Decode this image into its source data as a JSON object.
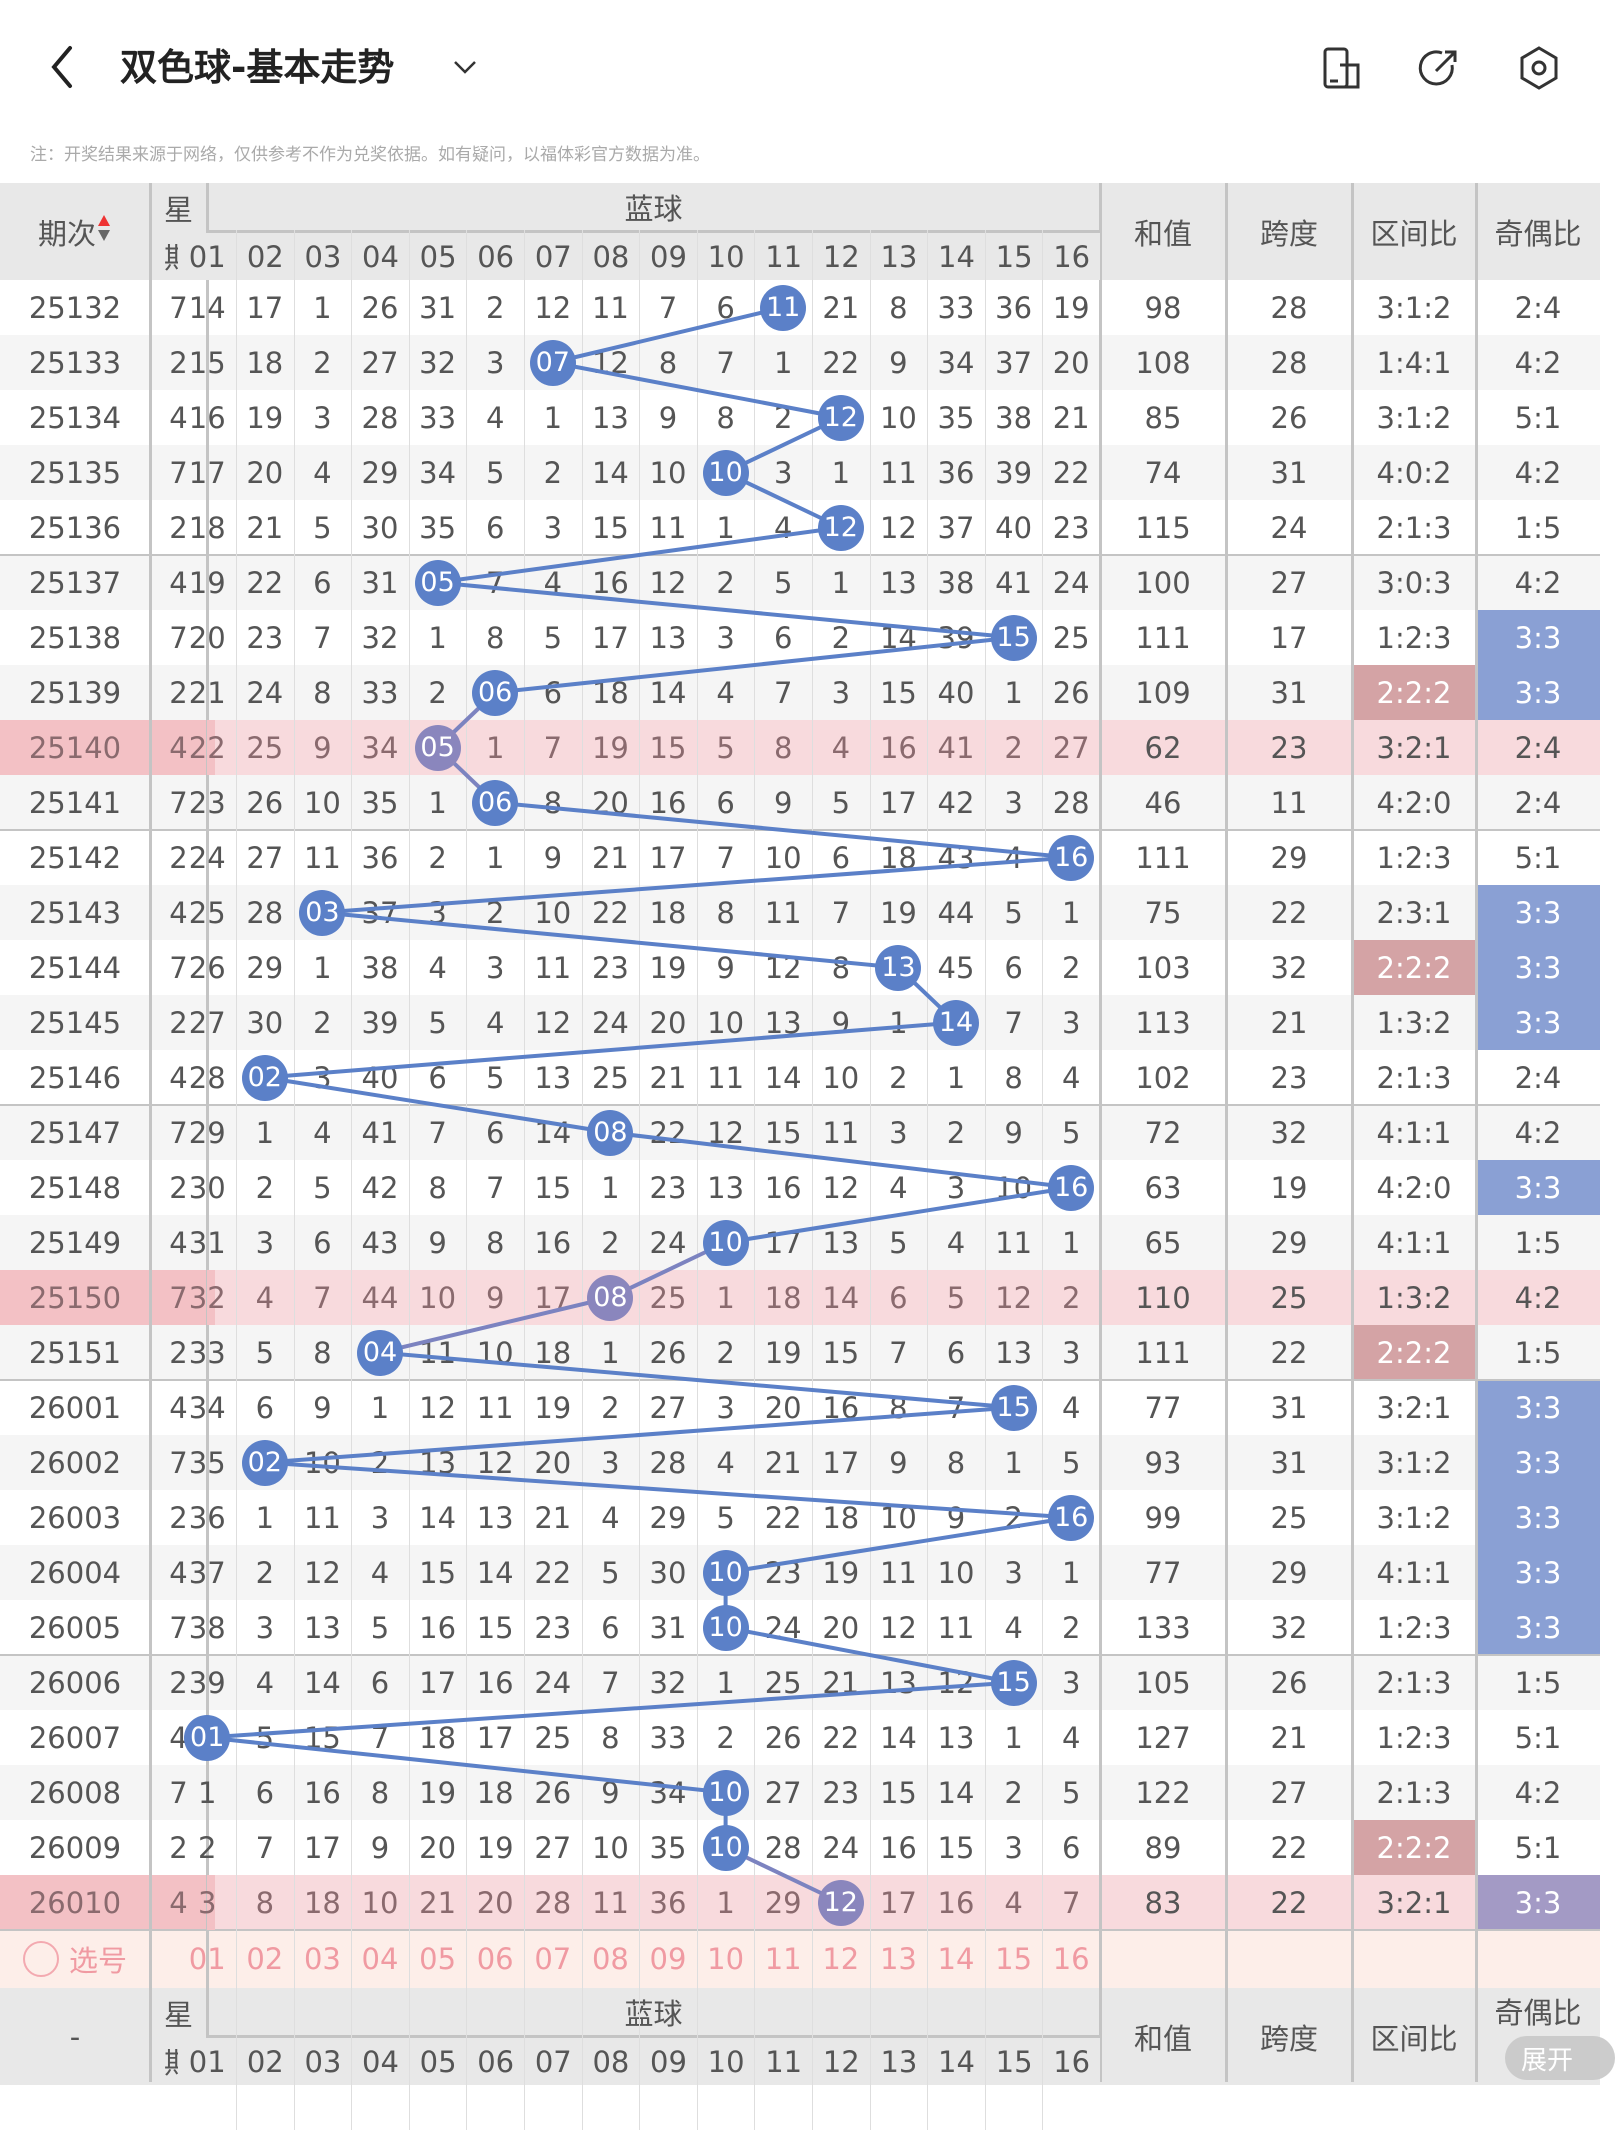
{
  "header": {
    "title": "双色球-基本走势",
    "note": "注：开奖结果来源于网络，仅供参考不作为兑奖依据。如有疑问，以福体彩官方数据为准。"
  },
  "icons": [
    "back-arrow-icon",
    "chevron-down-icon",
    "device-icon",
    "share-icon",
    "settings-icon"
  ],
  "columns": {
    "issue": "期次",
    "week": "星期",
    "week_top": "星",
    "week_bottom": "期",
    "blue": "蓝球",
    "sum": "和值",
    "span": "跨度",
    "zone": "区间比",
    "oddeven": "奇偶比",
    "blue_numbers": [
      "01",
      "02",
      "03",
      "04",
      "05",
      "06",
      "07",
      "08",
      "09",
      "10",
      "11",
      "12",
      "13",
      "14",
      "15",
      "16"
    ]
  },
  "colors": {
    "ball": "#5b80c8",
    "ball_pink_row": "#8a86bd",
    "line": "#5b80c8",
    "oe_highlight": "#8aa0d4",
    "zone_highlight": "#d4a3a5",
    "pink_row": "#f8dadd",
    "pink_row_left": "#f3c1c5",
    "oe_pink_highlight": "#a39ac5"
  },
  "rows": [
    {
      "issue": "25132",
      "week": "7",
      "blue": [
        14,
        17,
        1,
        26,
        31,
        2,
        12,
        11,
        7,
        6,
        "11",
        21,
        8,
        33,
        36,
        19
      ],
      "hit": 10,
      "sum": "98",
      "span": "28",
      "zone": "3:1:2",
      "oddeven": "2:4"
    },
    {
      "issue": "25133",
      "week": "2",
      "blue": [
        15,
        18,
        2,
        27,
        32,
        3,
        "07",
        12,
        8,
        7,
        1,
        22,
        9,
        34,
        37,
        20
      ],
      "hit": 6,
      "sum": "108",
      "span": "28",
      "zone": "1:4:1",
      "oddeven": "4:2"
    },
    {
      "issue": "25134",
      "week": "4",
      "blue": [
        16,
        19,
        3,
        28,
        33,
        4,
        1,
        13,
        9,
        8,
        2,
        "12",
        10,
        35,
        38,
        21
      ],
      "hit": 11,
      "sum": "85",
      "span": "26",
      "zone": "3:1:2",
      "oddeven": "5:1"
    },
    {
      "issue": "25135",
      "week": "7",
      "blue": [
        17,
        20,
        4,
        29,
        34,
        5,
        2,
        14,
        10,
        "10",
        3,
        1,
        11,
        36,
        39,
        22
      ],
      "hit": 9,
      "sum": "74",
      "span": "31",
      "zone": "4:0:2",
      "oddeven": "4:2"
    },
    {
      "issue": "25136",
      "week": "2",
      "blue": [
        18,
        21,
        5,
        30,
        35,
        6,
        3,
        15,
        11,
        1,
        4,
        "12",
        12,
        37,
        40,
        23
      ],
      "hit": 11,
      "sum": "115",
      "span": "24",
      "zone": "2:1:3",
      "oddeven": "1:5"
    },
    {
      "issue": "25137",
      "week": "4",
      "blue": [
        19,
        22,
        6,
        31,
        "05",
        7,
        4,
        16,
        12,
        2,
        5,
        1,
        13,
        38,
        41,
        24
      ],
      "hit": 4,
      "sum": "100",
      "span": "27",
      "zone": "3:0:3",
      "oddeven": "4:2"
    },
    {
      "issue": "25138",
      "week": "7",
      "blue": [
        20,
        23,
        7,
        32,
        1,
        8,
        5,
        17,
        13,
        3,
        6,
        2,
        14,
        39,
        "15",
        25
      ],
      "hit": 14,
      "sum": "111",
      "span": "17",
      "zone": "1:2:3",
      "oddeven": "3:3",
      "oe_hl": true
    },
    {
      "issue": "25139",
      "week": "2",
      "blue": [
        21,
        24,
        8,
        33,
        2,
        "06",
        6,
        18,
        14,
        4,
        7,
        3,
        15,
        40,
        1,
        26
      ],
      "hit": 5,
      "sum": "109",
      "span": "31",
      "zone": "2:2:2",
      "oddeven": "3:3",
      "zone_hl": true,
      "oe_hl": true
    },
    {
      "issue": "25140",
      "week": "4",
      "blue": [
        22,
        25,
        9,
        34,
        "05",
        1,
        7,
        19,
        15,
        5,
        8,
        4,
        16,
        41,
        2,
        27
      ],
      "hit": 4,
      "sum": "62",
      "span": "23",
      "zone": "3:2:1",
      "oddeven": "2:4",
      "pink": true
    },
    {
      "issue": "25141",
      "week": "7",
      "blue": [
        23,
        26,
        10,
        35,
        1,
        "06",
        8,
        20,
        16,
        6,
        9,
        5,
        17,
        42,
        3,
        28
      ],
      "hit": 5,
      "sum": "46",
      "span": "11",
      "zone": "4:2:0",
      "oddeven": "2:4"
    },
    {
      "issue": "25142",
      "week": "2",
      "blue": [
        24,
        27,
        11,
        36,
        2,
        1,
        9,
        21,
        17,
        7,
        10,
        6,
        18,
        43,
        4,
        "16"
      ],
      "hit": 15,
      "sum": "111",
      "span": "29",
      "zone": "1:2:3",
      "oddeven": "5:1"
    },
    {
      "issue": "25143",
      "week": "4",
      "blue": [
        25,
        28,
        "03",
        37,
        3,
        2,
        10,
        22,
        18,
        8,
        11,
        7,
        19,
        44,
        5,
        1
      ],
      "hit": 2,
      "sum": "75",
      "span": "22",
      "zone": "2:3:1",
      "oddeven": "3:3",
      "oe_hl": true
    },
    {
      "issue": "25144",
      "week": "7",
      "blue": [
        26,
        29,
        1,
        38,
        4,
        3,
        11,
        23,
        19,
        9,
        12,
        8,
        "13",
        45,
        6,
        2
      ],
      "hit": 12,
      "sum": "103",
      "span": "32",
      "zone": "2:2:2",
      "oddeven": "3:3",
      "zone_hl": true,
      "oe_hl": true
    },
    {
      "issue": "25145",
      "week": "2",
      "blue": [
        27,
        30,
        2,
        39,
        5,
        4,
        12,
        24,
        20,
        10,
        13,
        9,
        1,
        "14",
        7,
        3
      ],
      "hit": 13,
      "sum": "113",
      "span": "21",
      "zone": "1:3:2",
      "oddeven": "3:3",
      "oe_hl": true
    },
    {
      "issue": "25146",
      "week": "4",
      "blue": [
        28,
        "02",
        3,
        40,
        6,
        5,
        13,
        25,
        21,
        11,
        14,
        10,
        2,
        1,
        8,
        4
      ],
      "hit": 1,
      "sum": "102",
      "span": "23",
      "zone": "2:1:3",
      "oddeven": "2:4"
    },
    {
      "issue": "25147",
      "week": "7",
      "blue": [
        29,
        1,
        4,
        41,
        7,
        6,
        14,
        "08",
        22,
        12,
        15,
        11,
        3,
        2,
        9,
        5
      ],
      "hit": 7,
      "sum": "72",
      "span": "32",
      "zone": "4:1:1",
      "oddeven": "4:2"
    },
    {
      "issue": "25148",
      "week": "2",
      "blue": [
        30,
        2,
        5,
        42,
        8,
        7,
        15,
        1,
        23,
        13,
        16,
        12,
        4,
        3,
        10,
        "16"
      ],
      "hit": 15,
      "sum": "63",
      "span": "19",
      "zone": "4:2:0",
      "oddeven": "3:3",
      "oe_hl": true
    },
    {
      "issue": "25149",
      "week": "4",
      "blue": [
        31,
        3,
        6,
        43,
        9,
        8,
        16,
        2,
        24,
        "10",
        17,
        13,
        5,
        4,
        11,
        1
      ],
      "hit": 9,
      "sum": "65",
      "span": "29",
      "zone": "4:1:1",
      "oddeven": "1:5"
    },
    {
      "issue": "25150",
      "week": "7",
      "blue": [
        32,
        4,
        7,
        44,
        10,
        9,
        17,
        "08",
        25,
        1,
        18,
        14,
        6,
        5,
        12,
        2
      ],
      "hit": 7,
      "sum": "110",
      "span": "25",
      "zone": "1:3:2",
      "oddeven": "4:2",
      "pink": true
    },
    {
      "issue": "25151",
      "week": "2",
      "blue": [
        33,
        5,
        8,
        "04",
        11,
        10,
        18,
        1,
        26,
        2,
        19,
        15,
        7,
        6,
        13,
        3
      ],
      "hit": 3,
      "sum": "111",
      "span": "22",
      "zone": "2:2:2",
      "oddeven": "1:5",
      "zone_hl": true
    },
    {
      "issue": "26001",
      "week": "4",
      "blue": [
        34,
        6,
        9,
        1,
        12,
        11,
        19,
        2,
        27,
        3,
        20,
        16,
        8,
        7,
        "15",
        4
      ],
      "hit": 14,
      "sum": "77",
      "span": "31",
      "zone": "3:2:1",
      "oddeven": "3:3",
      "oe_hl": true
    },
    {
      "issue": "26002",
      "week": "7",
      "blue": [
        35,
        "02",
        10,
        2,
        13,
        12,
        20,
        3,
        28,
        4,
        21,
        17,
        9,
        8,
        1,
        5
      ],
      "hit": 1,
      "sum": "93",
      "span": "31",
      "zone": "3:1:2",
      "oddeven": "3:3",
      "oe_hl": true
    },
    {
      "issue": "26003",
      "week": "2",
      "blue": [
        36,
        1,
        11,
        3,
        14,
        13,
        21,
        4,
        29,
        5,
        22,
        18,
        10,
        9,
        2,
        "16"
      ],
      "hit": 15,
      "sum": "99",
      "span": "25",
      "zone": "3:1:2",
      "oddeven": "3:3",
      "oe_hl": true
    },
    {
      "issue": "26004",
      "week": "4",
      "blue": [
        37,
        2,
        12,
        4,
        15,
        14,
        22,
        5,
        30,
        "10",
        23,
        19,
        11,
        10,
        3,
        1
      ],
      "hit": 9,
      "sum": "77",
      "span": "29",
      "zone": "4:1:1",
      "oddeven": "3:3",
      "oe_hl": true
    },
    {
      "issue": "26005",
      "week": "7",
      "blue": [
        38,
        3,
        13,
        5,
        16,
        15,
        23,
        6,
        31,
        "10",
        24,
        20,
        12,
        11,
        4,
        2
      ],
      "hit": 9,
      "sum": "133",
      "span": "32",
      "zone": "1:2:3",
      "oddeven": "3:3",
      "oe_hl": true
    },
    {
      "issue": "26006",
      "week": "2",
      "blue": [
        39,
        4,
        14,
        6,
        17,
        16,
        24,
        7,
        32,
        1,
        25,
        21,
        13,
        12,
        "15",
        3
      ],
      "hit": 14,
      "sum": "105",
      "span": "26",
      "zone": "2:1:3",
      "oddeven": "1:5"
    },
    {
      "issue": "26007",
      "week": "4",
      "blue": [
        "01",
        5,
        15,
        7,
        18,
        17,
        25,
        8,
        33,
        2,
        26,
        22,
        14,
        13,
        1,
        4
      ],
      "hit": 0,
      "sum": "127",
      "span": "21",
      "zone": "1:2:3",
      "oddeven": "5:1"
    },
    {
      "issue": "26008",
      "week": "7",
      "blue": [
        1,
        6,
        16,
        8,
        19,
        18,
        26,
        9,
        34,
        "10",
        27,
        23,
        15,
        14,
        2,
        5
      ],
      "hit": 9,
      "sum": "122",
      "span": "27",
      "zone": "2:1:3",
      "oddeven": "4:2"
    },
    {
      "issue": "26009",
      "week": "2",
      "blue": [
        2,
        7,
        17,
        9,
        20,
        19,
        27,
        10,
        35,
        "10",
        28,
        24,
        16,
        15,
        3,
        6
      ],
      "hit": 9,
      "sum": "89",
      "span": "22",
      "zone": "2:2:2",
      "oddeven": "5:1",
      "zone_hl": true
    },
    {
      "issue": "26010",
      "week": "4",
      "blue": [
        3,
        8,
        18,
        10,
        21,
        20,
        28,
        11,
        36,
        1,
        29,
        "12",
        17,
        16,
        4,
        7
      ],
      "hit": 11,
      "sum": "83",
      "span": "22",
      "zone": "3:2:1",
      "oddeven": "3:3",
      "pink": true,
      "oe_hl": true
    }
  ],
  "select_row": {
    "label": "选号"
  },
  "footer": {
    "issue": "-",
    "expand": "展开"
  }
}
